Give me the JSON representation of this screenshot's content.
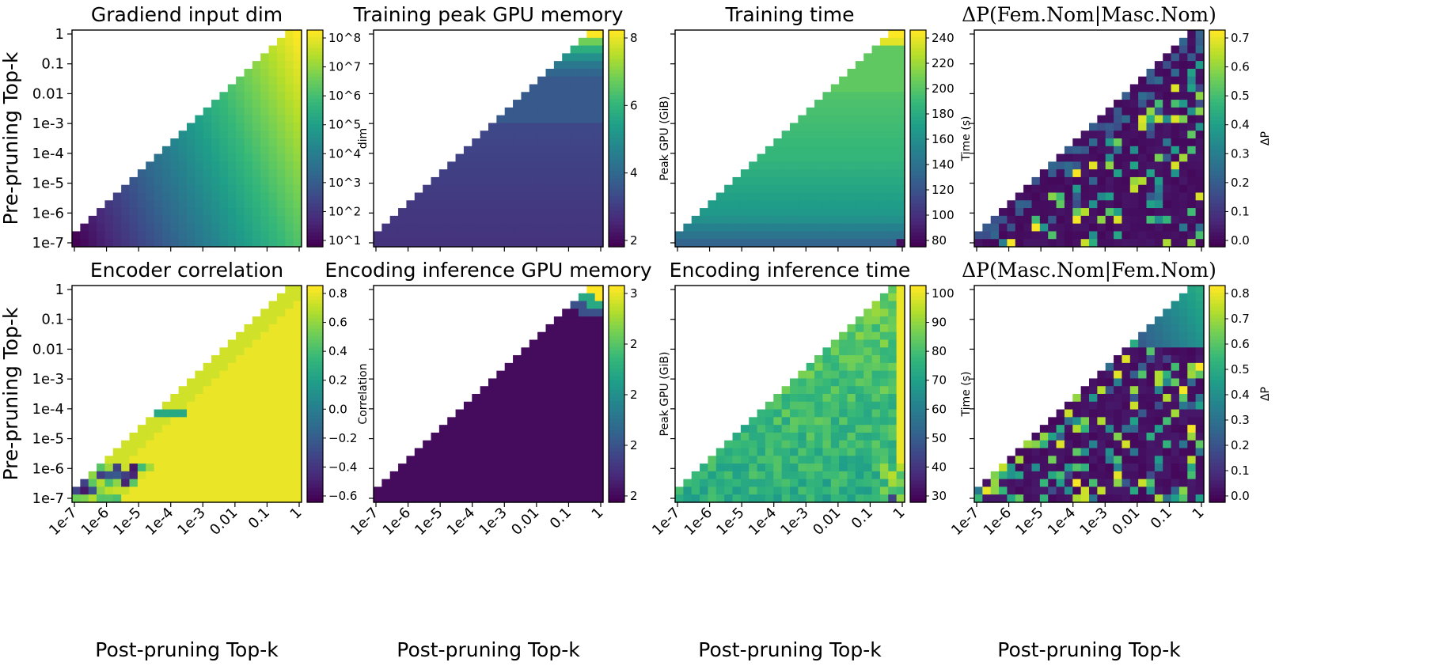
{
  "chart_data": [
    {
      "type": "heatmap",
      "title": "Gradiend input dim",
      "pattern": "gradient_diag",
      "log_scale": true,
      "colorbar_label": "dim",
      "colorbar_range": [
        10,
        100000000
      ],
      "colorbar_ticks": [
        "10^1",
        "10^2",
        "10^3",
        "10^4",
        "10^5",
        "10^6",
        "10^7",
        "10^8"
      ],
      "ylabel": "Pre-pruning Top-k",
      "xlabel": ""
    },
    {
      "type": "heatmap",
      "title": "Training peak GPU memory",
      "pattern": "rows_peak_top",
      "colorbar_label": "Peak GPU (GiB)",
      "colorbar_range": [
        1.3,
        9.5
      ],
      "colorbar_ticks": [
        "2",
        "4",
        "6",
        "8"
      ],
      "ylabel": "",
      "xlabel": ""
    },
    {
      "type": "heatmap",
      "title": "Training time",
      "pattern": "rows_time",
      "colorbar_label": "Time (s)",
      "colorbar_range": [
        75,
        248
      ],
      "colorbar_ticks": [
        "80",
        "100",
        "120",
        "140",
        "160",
        "180",
        "200",
        "220",
        "240"
      ],
      "ylabel": "",
      "xlabel": ""
    },
    {
      "type": "heatmap",
      "title": "ΔP(Fem.Nom|Masc.Nom)",
      "pattern": "noisy_dp1",
      "colorbar_label": "ΔP",
      "colorbar_range": [
        0.0,
        0.77
      ],
      "colorbar_ticks": [
        "0.0",
        "0.1",
        "0.2",
        "0.3",
        "0.4",
        "0.5",
        "0.6",
        "0.7"
      ],
      "ylabel": "",
      "xlabel": ""
    },
    {
      "type": "heatmap",
      "title": "Encoder correlation",
      "pattern": "corr",
      "colorbar_label": "Correlation",
      "colorbar_range": [
        -0.78,
        0.98
      ],
      "colorbar_ticks": [
        "−0.6",
        "−0.4",
        "−0.2",
        "0.0",
        "0.2",
        "0.4",
        "0.6",
        "0.8"
      ],
      "ylabel": "Pre-pruning Top-k",
      "xlabel": "Post-pruning Top-k"
    },
    {
      "type": "heatmap",
      "title": "Encoding inference GPU memory",
      "pattern": "corner_mem",
      "colorbar_label": "Peak GPU (GiB)",
      "colorbar_range": [
        1.5,
        3.5
      ],
      "colorbar_ticks": [
        "2",
        "2",
        "2",
        "2",
        "3"
      ],
      "ylabel": "",
      "xlabel": "Post-pruning Top-k"
    },
    {
      "type": "heatmap",
      "title": "Encoding inference time",
      "pattern": "inf_time",
      "colorbar_label": "Time (s)",
      "colorbar_range": [
        30,
        105
      ],
      "colorbar_ticks": [
        "30",
        "40",
        "50",
        "60",
        "70",
        "80",
        "90",
        "100"
      ],
      "ylabel": "",
      "xlabel": "Post-pruning Top-k"
    },
    {
      "type": "heatmap",
      "title": "ΔP(Masc.Nom|Fem.Nom)",
      "pattern": "noisy_dp2",
      "colorbar_label": "ΔP",
      "colorbar_range": [
        0.0,
        0.84
      ],
      "colorbar_ticks": [
        "0.0",
        "0.1",
        "0.2",
        "0.3",
        "0.4",
        "0.5",
        "0.6",
        "0.7",
        "0.8"
      ],
      "ylabel": "",
      "xlabel": "Post-pruning Top-k"
    }
  ],
  "axes": {
    "x_ticks": [
      "1e-7",
      "1e-6",
      "1e-5",
      "1e-4",
      "1e-3",
      "0.01",
      "0.1",
      "1"
    ],
    "y_ticks": [
      "1",
      "0.1",
      "0.01",
      "1e-3",
      "1e-4",
      "1e-5",
      "1e-6",
      "1e-7"
    ]
  },
  "colormap": "viridis"
}
